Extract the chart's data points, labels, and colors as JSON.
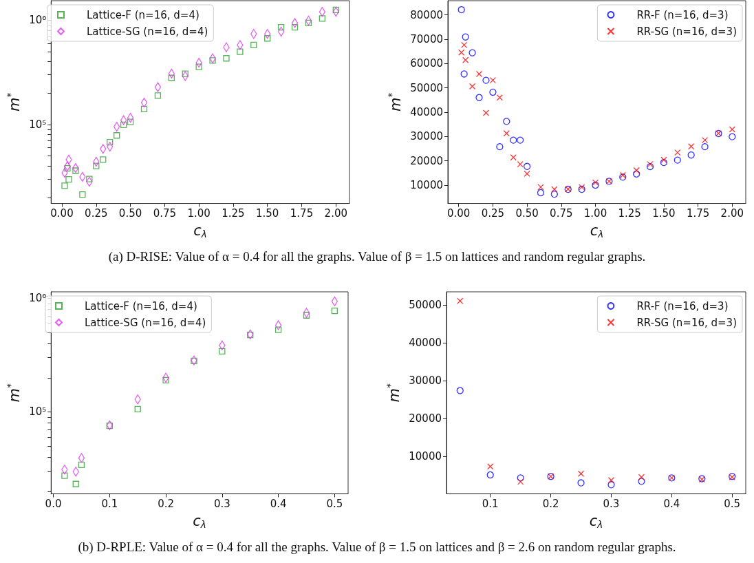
{
  "chart_data": [
    {
      "type": "scatter",
      "xlabel": "c$_{λ}$",
      "ylabel": "m$^{*}$",
      "log": "y",
      "grid": false,
      "legend": "top left",
      "x": [
        0.02,
        0.04,
        0.05,
        0.1,
        0.15,
        0.2,
        0.25,
        0.3,
        0.35,
        0.4,
        0.45,
        0.5,
        0.6,
        0.7,
        0.8,
        0.9,
        1.0,
        1.1,
        1.2,
        1.3,
        1.4,
        1.5,
        1.6,
        1.7,
        1.8,
        1.9,
        2.0
      ],
      "xlim": [
        -0.079,
        2.099
      ],
      "xticks": [
        {
          "value": 0,
          "label": "0.00"
        },
        {
          "value": 0.25,
          "label": "0.25"
        },
        {
          "value": 0.5,
          "label": "0.50"
        },
        {
          "value": 0.75,
          "label": "0.75"
        },
        {
          "value": 1,
          "label": "1.00"
        },
        {
          "value": 1.25,
          "label": "1.25"
        },
        {
          "value": 1.5,
          "label": "1.50"
        },
        {
          "value": 1.75,
          "label": "1.75"
        },
        {
          "value": 2,
          "label": "2.00"
        }
      ],
      "ylim": [
        17600,
        1530000
      ],
      "yticks": [
        {
          "value": 20000,
          "label": null
        },
        {
          "value": 30000,
          "label": null
        },
        {
          "value": 40000,
          "label": null
        },
        {
          "value": 50000,
          "label": null
        },
        {
          "value": 60000,
          "label": null
        },
        {
          "value": 70000,
          "label": null
        },
        {
          "value": 80000,
          "label": null
        },
        {
          "value": 90000,
          "label": null
        },
        {
          "value": 100000,
          "label": "10⁵"
        },
        {
          "value": 200000,
          "label": null
        },
        {
          "value": 300000,
          "label": null
        },
        {
          "value": 400000,
          "label": null
        },
        {
          "value": 500000,
          "label": null
        },
        {
          "value": 600000,
          "label": null
        },
        {
          "value": 700000,
          "label": null
        },
        {
          "value": 800000,
          "label": null
        },
        {
          "value": 900000,
          "label": null
        },
        {
          "value": 1000000,
          "label": "10⁶"
        }
      ],
      "series": [
        {
          "name": "Lattice-F (n=16, d=4)",
          "color": "#2ca02c",
          "marker": "square",
          "values": [
            26000,
            38100,
            29900,
            36200,
            21400,
            30100,
            40200,
            46200,
            67800,
            78700,
            99500,
            106000,
            141000,
            189000,
            279000,
            306000,
            356000,
            410000,
            430000,
            498000,
            576000,
            667000,
            851000,
            851000,
            937000,
            1035000,
            1250000
          ]
        },
        {
          "name": "Lattice-SG (n=16, d=4)",
          "color": "#dd33ee",
          "marker": "diamond",
          "values": [
            34500,
            40000,
            46200,
            38400,
            31600,
            28400,
            44100,
            58500,
            61400,
            95300,
            110000,
            116000,
            162000,
            228000,
            307000,
            291000,
            390000,
            430000,
            548000,
            576000,
            736000,
            736000,
            773000,
            937000,
            986000,
            1197000,
            1197000
          ]
        }
      ],
      "annotations": [
        "(a) D-RISE: Value of α = 0.4 for all the graphs. Value of β = 1.5 on lattices and random regular graphs."
      ]
    },
    {
      "type": "scatter",
      "xlabel": "c$_{λ}$",
      "ylabel": "m$^{*}$",
      "grid": false,
      "legend": "top right",
      "x": [
        0.02,
        0.04,
        0.05,
        0.1,
        0.15,
        0.2,
        0.25,
        0.3,
        0.35,
        0.4,
        0.45,
        0.5,
        0.6,
        0.7,
        0.8,
        0.9,
        1.0,
        1.1,
        1.2,
        1.3,
        1.4,
        1.5,
        1.6,
        1.7,
        1.8,
        1.9,
        2.0
      ],
      "xlim": [
        -0.079,
        2.099
      ],
      "xticks": [
        {
          "value": 0,
          "label": "0.00"
        },
        {
          "value": 0.25,
          "label": "0.25"
        },
        {
          "value": 0.5,
          "label": "0.50"
        },
        {
          "value": 0.75,
          "label": "0.75"
        },
        {
          "value": 1,
          "label": "1.00"
        },
        {
          "value": 1.25,
          "label": "1.25"
        },
        {
          "value": 1.5,
          "label": "1.50"
        },
        {
          "value": 1.75,
          "label": "1.75"
        },
        {
          "value": 2,
          "label": "2.00"
        }
      ],
      "ylim": [
        2500,
        85800
      ],
      "yticks": [
        10000,
        20000,
        30000,
        40000,
        50000,
        60000,
        70000,
        80000
      ],
      "series": [
        {
          "name": "RR-F (n=16, d=3)",
          "color": "#0000ff",
          "marker": "circle",
          "values": [
            82100,
            55700,
            70900,
            64400,
            46000,
            53100,
            48200,
            25800,
            36200,
            28500,
            28500,
            17700,
            6900,
            6300,
            8300,
            8300,
            10000,
            11600,
            13300,
            14600,
            17600,
            19300,
            20300,
            22400,
            25800,
            31200,
            29900
          ]
        },
        {
          "name": "RR-SG (n=16, d=3)",
          "color": "#ff0000",
          "marker": "cross",
          "values": [
            64500,
            67600,
            61400,
            50600,
            55700,
            39700,
            53100,
            46000,
            31300,
            21400,
            18600,
            14700,
            9200,
            8300,
            8400,
            9200,
            11100,
            11600,
            14100,
            16100,
            18600,
            20400,
            23400,
            25900,
            28500,
            31300,
            32900
          ]
        }
      ]
    },
    {
      "type": "scatter",
      "xlabel": "c$_{λ}$",
      "ylabel": "m$^{*}$",
      "log": "y",
      "grid": false,
      "legend": "top left",
      "x": [
        0.02,
        0.04,
        0.05,
        0.1,
        0.15,
        0.2,
        0.25,
        0.3,
        0.35,
        0.4,
        0.45,
        0.5
      ],
      "xlim": [
        -0.004,
        0.524
      ],
      "xticks": [
        {
          "value": 0,
          "label": "0.0"
        },
        0.1,
        0.2,
        0.3,
        0.4,
        0.5
      ],
      "ylim": [
        19000,
        1140000
      ],
      "yticks": [
        {
          "value": 20000,
          "label": null
        },
        {
          "value": 30000,
          "label": null
        },
        {
          "value": 40000,
          "label": null
        },
        {
          "value": 50000,
          "label": null
        },
        {
          "value": 60000,
          "label": null
        },
        {
          "value": 70000,
          "label": null
        },
        {
          "value": 80000,
          "label": null
        },
        {
          "value": 90000,
          "label": null
        },
        {
          "value": 100000,
          "label": "10⁵"
        },
        {
          "value": 200000,
          "label": null
        },
        {
          "value": 300000,
          "label": null
        },
        {
          "value": 400000,
          "label": null
        },
        {
          "value": 500000,
          "label": null
        },
        {
          "value": 600000,
          "label": null
        },
        {
          "value": 700000,
          "label": null
        },
        {
          "value": 800000,
          "label": null
        },
        {
          "value": 900000,
          "label": null
        },
        {
          "value": 1000000,
          "label": "10⁶"
        }
      ],
      "series": [
        {
          "name": "Lattice-F (n=16, d=4)",
          "color": "#2ca02c",
          "marker": "square",
          "values": [
            27500,
            23200,
            34200,
            75500,
            106000,
            190000,
            281000,
            342000,
            476000,
            528000,
            707000,
            775000
          ]
        },
        {
          "name": "Lattice-SG (n=16, d=4)",
          "color": "#dd33ee",
          "marker": "diamond",
          "values": [
            31100,
            29800,
            39300,
            76300,
            129000,
            200000,
            284000,
            385000,
            481000,
            579000,
            745000,
            940000
          ]
        }
      ],
      "annotations": [
        "(b) D-RPLE: Value of α = 0.4 for all the graphs. Value of β = 1.5 on lattices and β = 2.6 on random regular graphs."
      ]
    },
    {
      "type": "scatter",
      "xlabel": "c$_{λ}$",
      "ylabel": "m$^{*}$",
      "grid": false,
      "legend": "top right",
      "x": [
        0.05,
        0.1,
        0.15,
        0.2,
        0.25,
        0.3,
        0.35,
        0.4,
        0.45,
        0.5
      ],
      "xlim": [
        0.0275,
        0.5225
      ],
      "xticks": [
        0.1,
        0.2,
        0.3,
        0.4,
        0.5
      ],
      "ylim": [
        200,
        53400
      ],
      "yticks": [
        10000,
        20000,
        30000,
        40000,
        50000
      ],
      "series": [
        {
          "name": "RR-F (n=16, d=3)",
          "color": "#0000ff",
          "marker": "circle",
          "values": [
            27400,
            5200,
            4400,
            4800,
            3100,
            2600,
            3500,
            4400,
            4200,
            4800
          ]
        },
        {
          "name": "RR-SG (n=16, d=3)",
          "color": "#ff0000",
          "marker": "cross",
          "values": [
            51000,
            7400,
            3400,
            4800,
            5500,
            3800,
            4600,
            4400,
            4000,
            4600
          ]
        }
      ]
    }
  ]
}
